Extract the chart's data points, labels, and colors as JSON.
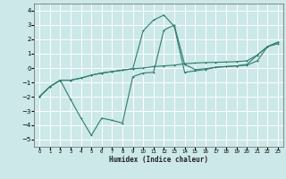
{
  "title": "",
  "xlabel": "Humidex (Indice chaleur)",
  "background_color": "#cce8e8",
  "grid_color": "#ffffff",
  "line_color": "#2e7d6e",
  "xlim": [
    -0.5,
    23.5
  ],
  "ylim": [
    -5.5,
    4.5
  ],
  "xticks": [
    0,
    1,
    2,
    3,
    4,
    5,
    6,
    7,
    8,
    9,
    10,
    11,
    12,
    13,
    14,
    15,
    16,
    17,
    18,
    19,
    20,
    21,
    22,
    23
  ],
  "yticks": [
    -5,
    -4,
    -3,
    -2,
    -1,
    0,
    1,
    2,
    3,
    4
  ],
  "line1_x": [
    0,
    1,
    2,
    3,
    4,
    5,
    6,
    7,
    8,
    9,
    10,
    11,
    12,
    13,
    14,
    15,
    16,
    17,
    18,
    19,
    20,
    21,
    22,
    23
  ],
  "line1_y": [
    -2.0,
    -1.3,
    -0.85,
    -0.85,
    -0.7,
    -0.5,
    -0.35,
    -0.25,
    -0.15,
    -0.05,
    0.0,
    0.1,
    0.15,
    0.2,
    0.3,
    0.35,
    0.38,
    0.4,
    0.42,
    0.45,
    0.5,
    0.9,
    1.5,
    1.7
  ],
  "line2_x": [
    0,
    1,
    2,
    3,
    4,
    5,
    6,
    7,
    8,
    9,
    10,
    11,
    12,
    13,
    14,
    15,
    16,
    17,
    18,
    19,
    20,
    21,
    22,
    23
  ],
  "line2_y": [
    -2.0,
    -1.3,
    -0.85,
    -2.2,
    -3.5,
    -4.7,
    -3.5,
    -3.65,
    -3.85,
    -0.6,
    -0.35,
    -0.3,
    2.65,
    3.0,
    0.25,
    -0.1,
    -0.05,
    0.05,
    0.1,
    0.15,
    0.2,
    0.5,
    1.5,
    1.8
  ],
  "line3_x": [
    0,
    1,
    2,
    3,
    4,
    5,
    6,
    7,
    8,
    9,
    10,
    11,
    12,
    13,
    14,
    15,
    16,
    17,
    18,
    19,
    20,
    21,
    22,
    23
  ],
  "line3_y": [
    -2.0,
    -1.3,
    -0.85,
    -0.85,
    -0.7,
    -0.5,
    -0.35,
    -0.25,
    -0.15,
    -0.05,
    2.6,
    3.35,
    3.7,
    2.9,
    -0.3,
    -0.2,
    -0.1,
    0.05,
    0.1,
    0.15,
    0.25,
    0.9,
    1.5,
    1.8
  ]
}
